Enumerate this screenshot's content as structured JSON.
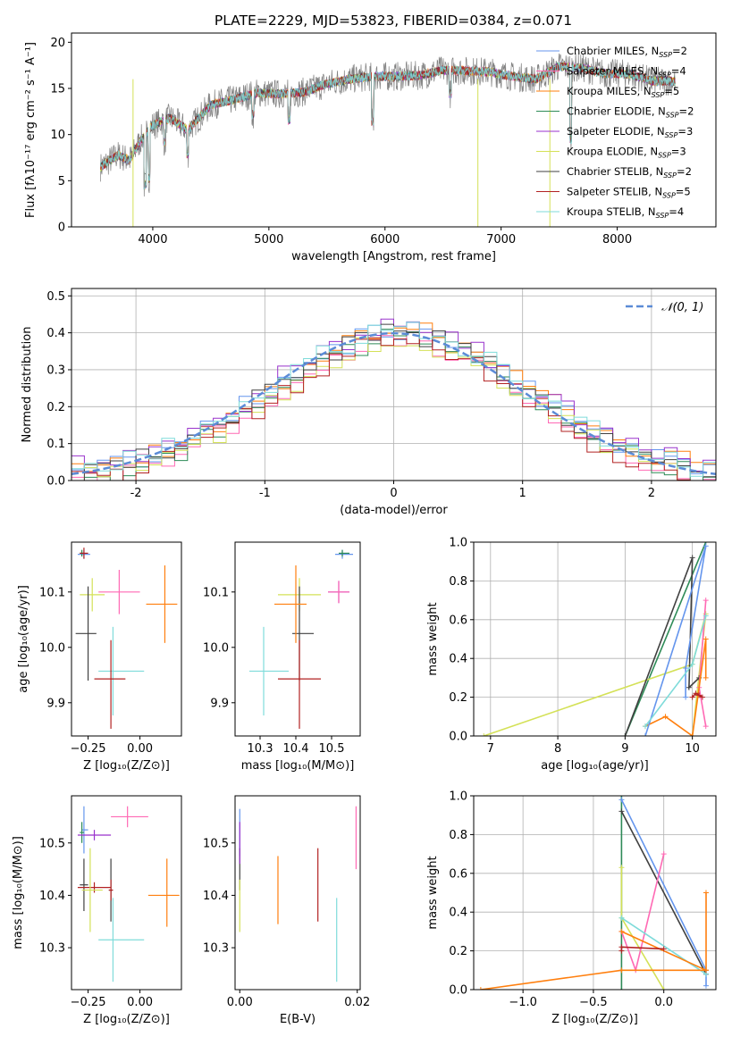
{
  "chart_data": [
    {
      "type": "line",
      "title": "PLATE=2229, MJD=53823, FIBERID=0384, z=0.071",
      "xlabel": "wavelength [Angstrom, rest frame]",
      "ylabel": "Flux [fλ10⁻¹⁷ erg cm⁻² s⁻¹ A⁻¹]",
      "xlim": [
        3300,
        8850
      ],
      "ylim": [
        0,
        21
      ],
      "xticks": [
        4000,
        5000,
        6000,
        7000,
        8000
      ],
      "yticks": [
        0,
        5,
        10,
        15,
        20
      ],
      "legend_position": "right",
      "observed_envelope": {
        "x": [
          3550,
          3700,
          3800,
          3900,
          4000,
          4150,
          4300,
          4500,
          4700,
          4900,
          5100,
          5300,
          5500,
          5700,
          5900,
          6100,
          6300,
          6500,
          6700,
          6900,
          7100,
          7300,
          7500,
          7700,
          7900,
          8100,
          8300,
          8500
        ],
        "y": [
          6.5,
          7.8,
          7.2,
          9.5,
          11.0,
          11.8,
          10.5,
          13.2,
          13.8,
          14.5,
          14.4,
          14.6,
          15.5,
          16.0,
          16.3,
          16.3,
          16.4,
          17.0,
          16.9,
          16.8,
          16.3,
          16.0,
          17.4,
          17.2,
          16.6,
          16.6,
          15.8,
          15.8
        ]
      },
      "series": [
        {
          "name": "Chabrier MILES",
          "nssp": "2",
          "color": "#6495ed"
        },
        {
          "name": "Salpeter MILES",
          "nssp": "4",
          "color": "#ff69b4"
        },
        {
          "name": "Kroupa MILES",
          "nssp": "5",
          "color": "#ff7f0e"
        },
        {
          "name": "Chabrier ELODIE",
          "nssp": "2",
          "color": "#2e8b57"
        },
        {
          "name": "Salpeter ELODIE",
          "nssp": "3",
          "color": "#9932cc"
        },
        {
          "name": "Kroupa ELODIE",
          "nssp": "3",
          "color": "#d4e157"
        },
        {
          "name": "Chabrier STELIB",
          "nssp": "2",
          "color": "#404040"
        },
        {
          "name": "Salpeter STELIB",
          "nssp": "5",
          "color": "#b22222"
        },
        {
          "name": "Kroupa STELIB",
          "nssp": "4",
          "color": "#7fdbda"
        }
      ]
    },
    {
      "type": "histogram",
      "xlabel": "(data-model)/error",
      "ylabel": "Normed distribution",
      "xlim": [
        -2.5,
        2.5
      ],
      "ylim": [
        0,
        0.52
      ],
      "xticks": [
        -2,
        -1,
        0,
        1,
        2
      ],
      "yticks": [
        0.0,
        0.1,
        0.2,
        0.3,
        0.4,
        0.5
      ],
      "grid": true,
      "legend_position": "top-right",
      "reference_curve": {
        "label": "𝒩(0, 1)",
        "color": "#5b8bd6"
      },
      "bin_width": 0.1,
      "bin_start": -2.5,
      "histograms": [
        {
          "color": "#6495ed",
          "offset": 0.01
        },
        {
          "color": "#ff69b4",
          "offset": -0.012
        },
        {
          "color": "#ff7f0e",
          "offset": 0.015
        },
        {
          "color": "#2e8b57",
          "offset": -0.008
        },
        {
          "color": "#9932cc",
          "offset": 0.02
        },
        {
          "color": "#d4e157",
          "offset": -0.015
        },
        {
          "color": "#404040",
          "offset": 0.005
        },
        {
          "color": "#b22222",
          "offset": -0.02
        },
        {
          "color": "#7fdbda",
          "offset": 0.012
        }
      ]
    },
    {
      "type": "scatter",
      "xlabel": "Z [log₁₀(Z/Z⊙)]",
      "ylabel": "age  [log₁₀(age/yr)]",
      "xlim": [
        -0.33,
        0.2
      ],
      "ylim": [
        9.84,
        10.19
      ],
      "xticks": [
        -0.25,
        0.0
      ],
      "xtick_labels": [
        "−0.25",
        "0.00"
      ],
      "yticks": [
        9.9,
        10.0,
        10.1
      ],
      "points": [
        {
          "x": -0.27,
          "y": 10.168,
          "xerr": [
            0.03,
            0.03
          ],
          "yerr": [
            0.008,
            0.008
          ],
          "color": "#6495ed"
        },
        {
          "x": -0.28,
          "y": 10.17,
          "xerr": [
            0.01,
            0.01
          ],
          "yerr": [
            0.006,
            0.006
          ],
          "color": "#2e8b57"
        },
        {
          "x": -0.27,
          "y": 10.17,
          "xerr": [
            0.02,
            0.02
          ],
          "yerr": [
            0.01,
            0.01
          ],
          "color": "#b22222"
        },
        {
          "x": -0.1,
          "y": 10.1,
          "xerr": [
            0.1,
            0.1
          ],
          "yerr": [
            0.04,
            0.04
          ],
          "color": "#ff69b4"
        },
        {
          "x": -0.23,
          "y": 10.095,
          "xerr": [
            0.06,
            0.06
          ],
          "yerr": [
            0.03,
            0.03
          ],
          "color": "#d4e157"
        },
        {
          "x": -0.25,
          "y": 10.025,
          "xerr": [
            0.06,
            0.04
          ],
          "yerr": [
            0.085,
            0.085
          ],
          "color": "#404040"
        },
        {
          "x": 0.12,
          "y": 10.078,
          "xerr": [
            0.09,
            0.06
          ],
          "yerr": [
            0.07,
            0.07
          ],
          "color": "#ff7f0e"
        },
        {
          "x": -0.13,
          "y": 9.957,
          "xerr": [
            0.07,
            0.15
          ],
          "yerr": [
            0.08,
            0.08
          ],
          "color": "#7fdbda"
        },
        {
          "x": -0.14,
          "y": 9.943,
          "xerr": [
            0.08,
            0.07
          ],
          "yerr": [
            0.09,
            0.07
          ],
          "color": "#b22222"
        }
      ]
    },
    {
      "type": "scatter",
      "xlabel": "mass [log₁₀(M/M⊙)]",
      "ylabel": "",
      "xlim": [
        10.23,
        10.58
      ],
      "ylim": [
        9.84,
        10.19
      ],
      "xticks": [
        10.3,
        10.4,
        10.5
      ],
      "yticks": [
        9.9,
        10.0,
        10.1
      ],
      "points": [
        {
          "x": 10.53,
          "y": 10.168,
          "xerr": [
            0.02,
            0.03
          ],
          "yerr": [
            0.008,
            0.008
          ],
          "color": "#6495ed"
        },
        {
          "x": 10.53,
          "y": 10.17,
          "xerr": [
            0.01,
            0.02
          ],
          "yerr": [
            0.006,
            0.006
          ],
          "color": "#2e8b57"
        },
        {
          "x": 10.52,
          "y": 10.1,
          "xerr": [
            0.03,
            0.03
          ],
          "yerr": [
            0.02,
            0.02
          ],
          "color": "#9932cc"
        },
        {
          "x": 10.52,
          "y": 10.1,
          "xerr": [
            0.03,
            0.03
          ],
          "yerr": [
            0.02,
            0.02
          ],
          "color": "#ff69b4"
        },
        {
          "x": 10.41,
          "y": 10.095,
          "xerr": [
            0.06,
            0.06
          ],
          "yerr": [
            0.03,
            0.03
          ],
          "color": "#d4e157"
        },
        {
          "x": 10.41,
          "y": 10.025,
          "xerr": [
            0.02,
            0.04
          ],
          "yerr": [
            0.085,
            0.085
          ],
          "color": "#404040"
        },
        {
          "x": 10.4,
          "y": 10.078,
          "xerr": [
            0.06,
            0.03
          ],
          "yerr": [
            0.07,
            0.07
          ],
          "color": "#ff7f0e"
        },
        {
          "x": 10.31,
          "y": 9.957,
          "xerr": [
            0.04,
            0.07
          ],
          "yerr": [
            0.08,
            0.08
          ],
          "color": "#7fdbda"
        },
        {
          "x": 10.41,
          "y": 9.943,
          "xerr": [
            0.06,
            0.06
          ],
          "yerr": [
            0.09,
            0.07
          ],
          "color": "#b22222"
        }
      ]
    },
    {
      "type": "line",
      "xlabel": "age  [log₁₀(age/yr)]",
      "ylabel": "mass weight",
      "xlim": [
        6.75,
        10.35
      ],
      "ylim": [
        0.0,
        1.0
      ],
      "xticks": [
        7,
        8,
        9,
        10
      ],
      "yticks": [
        0.0,
        0.2,
        0.4,
        0.6,
        0.8,
        1.0
      ],
      "grid": true,
      "series": [
        {
          "color": "#2e8b57",
          "x": [
            9.0,
            10.2
          ],
          "y": [
            0.0,
            1.0
          ]
        },
        {
          "color": "#d4e157",
          "x": [
            6.9,
            10.0,
            10.2,
            10.0,
            10.0
          ],
          "y": [
            0.0,
            0.37,
            0.63,
            0.0,
            0.0
          ]
        },
        {
          "color": "#404040",
          "x": [
            9.0,
            10.0,
            9.95,
            10.1
          ],
          "y": [
            0.0,
            0.92,
            0.25,
            0.3
          ]
        },
        {
          "color": "#ff69b4",
          "x": [
            10.2,
            10.1,
            10.2
          ],
          "y": [
            0.7,
            0.25,
            0.05
          ]
        },
        {
          "color": "#ff7f0e",
          "x": [
            9.3,
            9.6,
            10.0,
            10.2,
            10.2
          ],
          "y": [
            0.05,
            0.1,
            0.0,
            0.5,
            0.3
          ]
        },
        {
          "color": "#6495ed",
          "x": [
            9.3,
            10.2,
            9.9,
            9.9
          ],
          "y": [
            0.0,
            0.98,
            0.35,
            0.2
          ]
        },
        {
          "color": "#7fdbda",
          "x": [
            9.3,
            10.0,
            10.2
          ],
          "y": [
            0.05,
            0.37,
            0.62
          ]
        },
        {
          "color": "#b22222",
          "x": [
            10.0,
            10.05,
            10.1,
            10.15
          ],
          "y": [
            0.2,
            0.22,
            0.21,
            0.2
          ]
        }
      ]
    },
    {
      "type": "scatter",
      "xlabel": "Z [log₁₀(Z/Z⊙)]",
      "ylabel": "mass [log₁₀(M/M⊙)]",
      "xlim": [
        -0.33,
        0.2
      ],
      "ylim": [
        10.22,
        10.59
      ],
      "xticks": [
        -0.25,
        0.0
      ],
      "xtick_labels": [
        "−0.25",
        "0.00"
      ],
      "yticks": [
        10.3,
        10.4,
        10.5
      ],
      "points": [
        {
          "x": -0.27,
          "y": 10.525,
          "xerr": [
            0.01,
            0.02
          ],
          "yerr": [
            0.045,
            0.045
          ],
          "color": "#6495ed"
        },
        {
          "x": -0.28,
          "y": 10.52,
          "xerr": [
            0.01,
            0.01
          ],
          "yerr": [
            0.02,
            0.02
          ],
          "color": "#2e8b57"
        },
        {
          "x": -0.22,
          "y": 10.515,
          "xerr": [
            0.08,
            0.08
          ],
          "yerr": [
            0.01,
            0.01
          ],
          "color": "#9932cc"
        },
        {
          "x": -0.06,
          "y": 10.55,
          "xerr": [
            0.08,
            0.1
          ],
          "yerr": [
            0.02,
            0.02
          ],
          "color": "#ff69b4"
        },
        {
          "x": -0.27,
          "y": 10.42,
          "xerr": [
            0.02,
            0.02
          ],
          "yerr": [
            0.05,
            0.05
          ],
          "color": "#404040"
        },
        {
          "x": -0.22,
          "y": 10.415,
          "xerr": [
            0.08,
            0.08
          ],
          "yerr": [
            0.01,
            0.01
          ],
          "color": "#b22222"
        },
        {
          "x": -0.24,
          "y": 10.41,
          "xerr": [
            0.04,
            0.06
          ],
          "yerr": [
            0.08,
            0.08
          ],
          "color": "#d4e157"
        },
        {
          "x": -0.14,
          "y": 10.41,
          "xerr": [
            0.01,
            0.01
          ],
          "yerr": [
            0.06,
            0.06
          ],
          "color": "#404040"
        },
        {
          "x": 0.13,
          "y": 10.4,
          "xerr": [
            0.09,
            0.06
          ],
          "yerr": [
            0.06,
            0.07
          ],
          "color": "#ff7f0e"
        },
        {
          "x": -0.13,
          "y": 10.315,
          "xerr": [
            0.07,
            0.15
          ],
          "yerr": [
            0.08,
            0.08
          ],
          "color": "#7fdbda"
        },
        {
          "x": -0.14,
          "y": 10.41,
          "xerr": [
            0.01,
            0.01
          ],
          "yerr": [
            0.02,
            0.02
          ],
          "color": "#b22222"
        }
      ]
    },
    {
      "type": "scatter",
      "xlabel": "E(B-V)",
      "ylabel": "",
      "xlim": [
        -0.0008,
        0.0205
      ],
      "ylim": [
        10.22,
        10.59
      ],
      "xticks": [
        0.0,
        0.02
      ],
      "xtick_labels": [
        "0.00",
        "0.02"
      ],
      "yticks": [
        10.3,
        10.4,
        10.5
      ],
      "points": [
        {
          "x": 0.0,
          "y": 10.52,
          "yerr": [
            0.045,
            0.045
          ],
          "color": "#6495ed"
        },
        {
          "x": 0.0,
          "y": 10.45,
          "yerr": [
            0.04,
            0.04
          ],
          "color": "#404040"
        },
        {
          "x": 0.0,
          "y": 10.38,
          "yerr": [
            0.05,
            0.05
          ],
          "color": "#d4e157"
        },
        {
          "x": 0.0,
          "y": 10.5,
          "yerr": [
            0.04,
            0.04
          ],
          "color": "#9932cc"
        },
        {
          "x": 0.0065,
          "y": 10.41,
          "yerr": [
            0.065,
            0.065
          ],
          "color": "#ff7f0e"
        },
        {
          "x": 0.0133,
          "y": 10.42,
          "yerr": [
            0.07,
            0.07
          ],
          "color": "#b22222"
        },
        {
          "x": 0.0165,
          "y": 10.315,
          "yerr": [
            0.08,
            0.08
          ],
          "color": "#7fdbda"
        },
        {
          "x": 0.0198,
          "y": 10.51,
          "yerr": [
            0.06,
            0.06
          ],
          "color": "#ff69b4"
        }
      ]
    },
    {
      "type": "line",
      "xlabel": "Z [log₁₀(Z/Z⊙)]",
      "ylabel": "mass weight",
      "xlim": [
        -1.35,
        0.37
      ],
      "ylim": [
        0.0,
        1.0
      ],
      "xticks": [
        -1.0,
        -0.5,
        0.0
      ],
      "xtick_labels": [
        "−1.0",
        "−0.5",
        "0.0"
      ],
      "yticks": [
        0.0,
        0.2,
        0.4,
        0.6,
        0.8,
        1.0
      ],
      "grid": true,
      "series": [
        {
          "color": "#2e8b57",
          "x": [
            -0.3,
            -0.3
          ],
          "y": [
            1.0,
            0.0
          ]
        },
        {
          "color": "#404040",
          "x": [
            -0.3,
            0.3,
            0.3
          ],
          "y": [
            0.92,
            0.08,
            0.08
          ]
        },
        {
          "color": "#6495ed",
          "x": [
            -0.3,
            0.3,
            0.3
          ],
          "y": [
            0.98,
            0.1,
            0.02
          ]
        },
        {
          "color": "#d4e157",
          "x": [
            -0.3,
            -0.3,
            0.0
          ],
          "y": [
            0.63,
            0.37,
            0.0
          ]
        },
        {
          "color": "#ff69b4",
          "x": [
            0.0,
            -0.2,
            -0.3
          ],
          "y": [
            0.7,
            0.1,
            0.3
          ]
        },
        {
          "color": "#7fdbda",
          "x": [
            -0.3,
            0.3
          ],
          "y": [
            0.37,
            0.08
          ]
        },
        {
          "color": "#ff7f0e",
          "x": [
            -1.3,
            -0.3,
            0.3,
            0.3
          ],
          "y": [
            0.0,
            0.1,
            0.1,
            0.5
          ]
        },
        {
          "color": "#ff7f0e",
          "x": [
            -0.3,
            0.3
          ],
          "y": [
            0.3,
            0.1
          ]
        },
        {
          "color": "#b22222",
          "x": [
            -0.3,
            -0.3,
            0.0
          ],
          "y": [
            0.2,
            0.22,
            0.21
          ]
        }
      ]
    }
  ]
}
